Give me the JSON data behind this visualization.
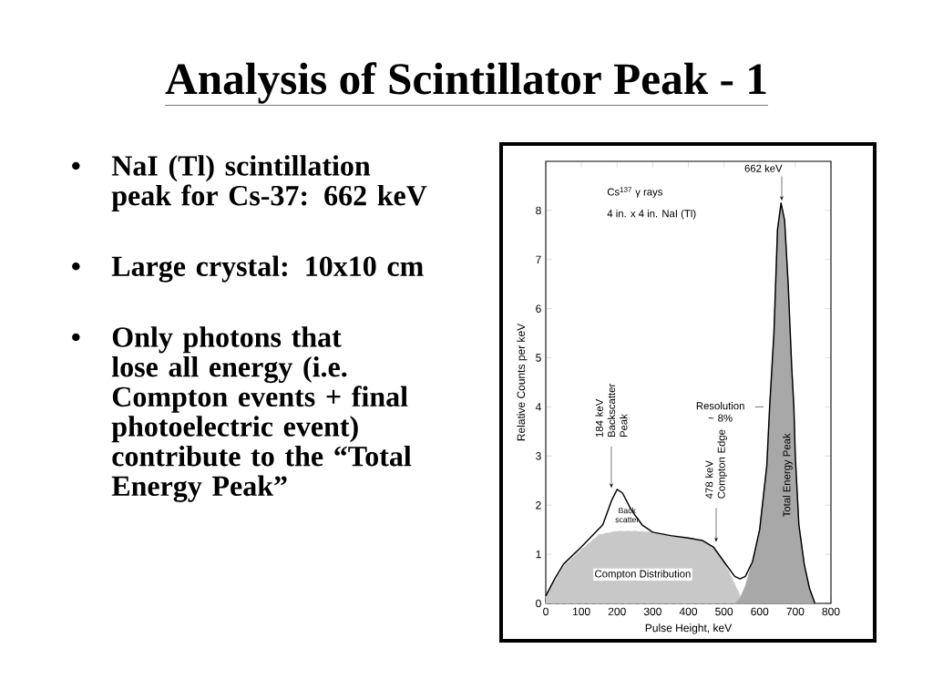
{
  "chart_data": {
    "type": "line",
    "title": "Analysis of Scintillator Peak - 1",
    "xlabel": "Pulse Height, keV",
    "ylabel": "Relative Counts per keV",
    "xlim": [
      0,
      800
    ],
    "ylim": [
      0,
      9
    ],
    "xticks": [
      0,
      100,
      200,
      300,
      400,
      500,
      600,
      700,
      800
    ],
    "yticks": [
      0,
      1,
      2,
      3,
      4,
      5,
      6,
      7,
      8
    ],
    "grid": false,
    "marker": "none",
    "series": [
      {
        "name": "Compton Distribution",
        "type": "area",
        "color": "#c8c8c8",
        "line_style": "dashed",
        "x": [
          0,
          25,
          50,
          100,
          150,
          200,
          250,
          300,
          350,
          400,
          440,
          470,
          500,
          530,
          555
        ],
        "values": [
          0.15,
          0.45,
          0.75,
          1.1,
          1.4,
          1.47,
          1.47,
          1.45,
          1.38,
          1.33,
          1.28,
          1.15,
          0.85,
          0.4,
          0
        ]
      },
      {
        "name": "Total Energy Peak",
        "type": "area",
        "color": "#a8a8a8",
        "x": [
          530,
          545,
          560,
          580,
          600,
          620,
          628,
          640,
          650,
          660,
          670,
          680,
          690,
          696,
          700,
          710,
          725,
          740,
          755
        ],
        "values": [
          0,
          0.1,
          0.35,
          0.85,
          1.5,
          2.8,
          4,
          5.5,
          7.6,
          8.15,
          7.8,
          6.5,
          4.8,
          4,
          3.0,
          1.6,
          0.8,
          0.3,
          0
        ]
      },
      {
        "color": "#000000",
        "x": [
          0,
          25,
          50,
          100,
          140,
          160,
          185,
          200,
          215,
          240,
          270,
          300,
          350,
          400,
          440,
          470,
          500,
          530,
          545,
          560,
          580,
          600,
          620,
          628,
          640,
          650,
          660,
          670,
          680,
          690,
          696,
          700,
          710,
          725,
          740,
          755
        ],
        "values": [
          0.15,
          0.5,
          0.8,
          1.15,
          1.45,
          1.6,
          2.1,
          2.32,
          2.25,
          1.9,
          1.6,
          1.45,
          1.38,
          1.33,
          1.28,
          1.15,
          0.85,
          0.55,
          0.5,
          0.55,
          0.85,
          1.5,
          2.8,
          4,
          5.5,
          7.6,
          8.15,
          7.8,
          6.5,
          4.8,
          4,
          3.0,
          1.6,
          0.8,
          0.3,
          0
        ]
      }
    ],
    "annotations": [
      "NaI (Tl) scintillation peak for Cs-37: 662 keV",
      "Large crystal: 10x10 cm",
      "Only photons that lose all energy (i.e. Compton events + final photoelectric event) contribute to the “Total Energy Peak”",
      "Cs$^{137}$ γ rays",
      "4 in. x 4 in. NaI (Tl)",
      {
        "text": "662 keV",
        "x": 662,
        "y": 8.15
      },
      {
        "text": "184 keV Backscatter Peak",
        "x": 184,
        "y": 2.3
      },
      {
        "text": "478 keV Compton Edge",
        "x": 478,
        "y": 1.2
      },
      "Back scatter",
      {
        "text": "Resolution ~ 8%",
        "x": 628,
        "y": 4
      }
    ]
  }
}
